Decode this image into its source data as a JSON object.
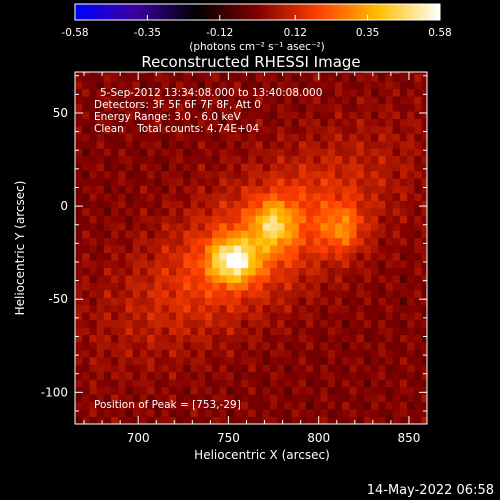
{
  "chart_data": {
    "type": "heatmap",
    "title": "Reconstructed RHESSI Image",
    "colorbar": {
      "ticks": [
        "-0.58",
        "-0.35",
        "-0.12",
        "0.12",
        "0.35",
        "0.58"
      ],
      "range": [
        -0.58,
        0.58
      ],
      "units": "(photons cm⁻² s⁻¹ asec⁻²)",
      "colormap": [
        "#0000ff",
        "#3a00a0",
        "#000000",
        "#800000",
        "#ff4000",
        "#ffc000",
        "#ffffff"
      ]
    },
    "xlabel": "Heliocentric X (arcsec)",
    "ylabel": "Heliocentric Y (arcsec)",
    "xlim": [
      665,
      860
    ],
    "ylim": [
      -117,
      72
    ],
    "xticks": [
      700,
      750,
      800,
      850
    ],
    "yticks": [
      50,
      0,
      -50,
      -100
    ],
    "annotations": [
      "5-Sep-2012 13:34:08.000 to 13:40:08.000",
      "Detectors: 3F 5F 6F 7F 8F, Att 0",
      "Energy Range: 3.0 - 6.0 keV",
      "Clean    Total counts: 4.74E+04"
    ],
    "peak_label": "Position of Peak = [753,-29]",
    "peak": [
      753,
      -29
    ],
    "sources": [
      {
        "x": 753,
        "y": -29,
        "peak": 0.58
      },
      {
        "x": 775,
        "y": -10,
        "peak": 0.45
      },
      {
        "x": 813,
        "y": -12,
        "peak": 0.38
      }
    ],
    "background_level": 0.04,
    "timestamp": "14-May-2022 06:58"
  }
}
